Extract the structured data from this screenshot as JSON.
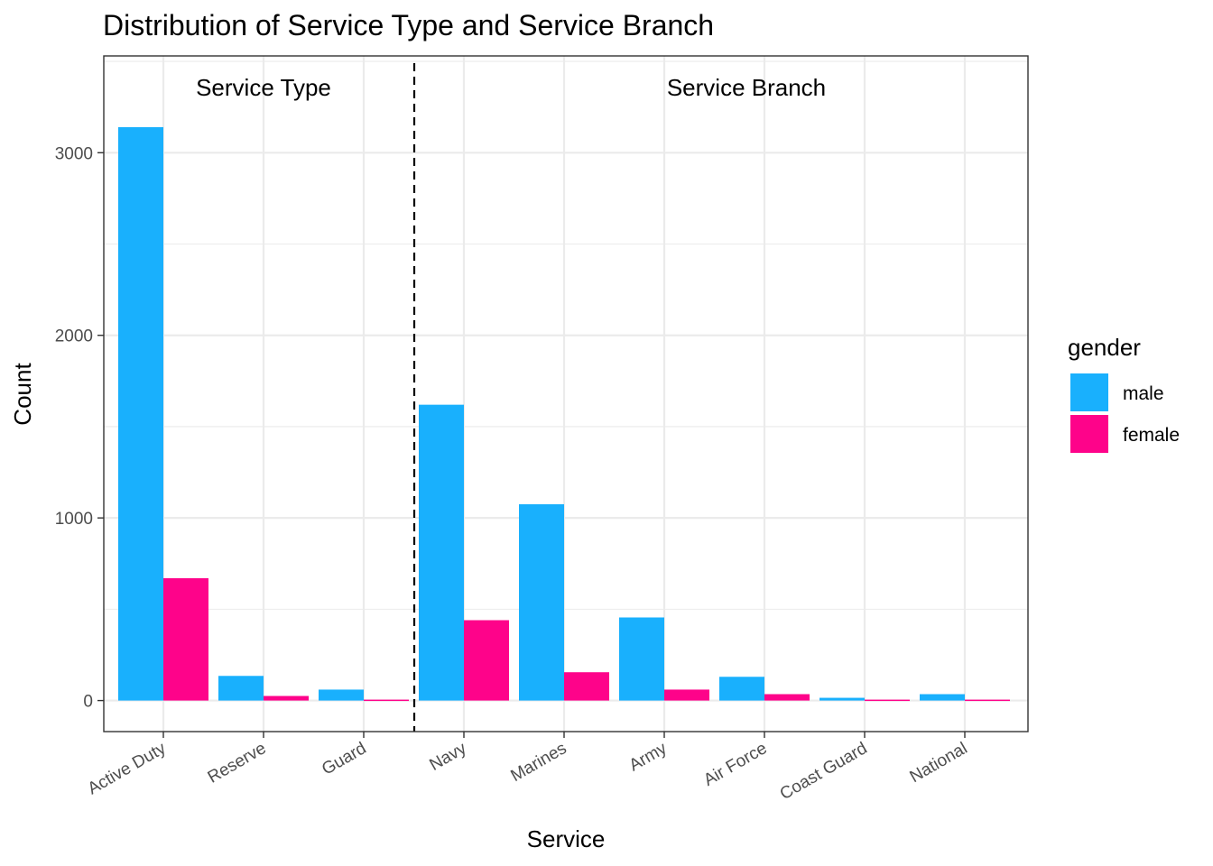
{
  "chart_data": {
    "type": "bar",
    "title": "Distribution of Service Type and Service Branch",
    "xlabel": "Service",
    "ylabel": "Count",
    "categories": [
      "Active Duty",
      "Reserve",
      "Guard",
      "Navy",
      "Marines",
      "Army",
      "Air Force",
      "Coast Guard",
      "National"
    ],
    "series": [
      {
        "name": "male",
        "color": "#19b0fd",
        "values": [
          3140,
          135,
          60,
          1620,
          1075,
          455,
          130,
          15,
          35
        ]
      },
      {
        "name": "female",
        "color": "#fe038a",
        "values": [
          670,
          25,
          5,
          440,
          155,
          60,
          35,
          5,
          5
        ]
      }
    ],
    "ylim": [
      -170,
      3530
    ],
    "yticks": [
      0,
      1000,
      2000,
      3000
    ],
    "grid": true,
    "legend": {
      "title": "gender",
      "position": "right",
      "items": [
        "male",
        "female"
      ]
    },
    "annotations": [
      "Service Type",
      "Service Branch"
    ],
    "separator": {
      "style": "dashed",
      "between": [
        "Guard",
        "Navy"
      ]
    }
  }
}
